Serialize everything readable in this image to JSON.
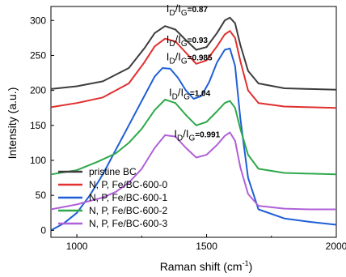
{
  "chart_data": {
    "type": "line",
    "xlabel": "Raman shift (cm",
    "xlabel_sup": "-1",
    "xlabel_tail": ")",
    "ylabel": "Intensity (a.u.)",
    "xlim": [
      900,
      2000
    ],
    "ylim": [
      -10,
      320
    ],
    "xticks": [
      1000,
      1500,
      2000
    ],
    "yticks": [
      0,
      50,
      100,
      150,
      200,
      250,
      300
    ],
    "legend_position": "lower-left",
    "series": [
      {
        "name": "pristine BC",
        "color": "#3d3d3d",
        "x": [
          900,
          1000,
          1100,
          1200,
          1260,
          1300,
          1340,
          1380,
          1420,
          1460,
          1500,
          1540,
          1570,
          1590,
          1610,
          1630,
          1660,
          1700,
          1800,
          1900,
          2000
        ],
        "y": [
          202,
          206,
          213,
          232,
          260,
          282,
          292,
          287,
          272,
          258,
          262,
          282,
          300,
          304,
          296,
          265,
          228,
          210,
          203,
          202,
          201
        ]
      },
      {
        "name": "N, P, Fe/BC-600-0",
        "color": "#e03030",
        "x": [
          900,
          1000,
          1100,
          1200,
          1260,
          1300,
          1340,
          1380,
          1420,
          1460,
          1500,
          1540,
          1570,
          1590,
          1610,
          1630,
          1660,
          1700,
          1800,
          1900,
          2000
        ],
        "y": [
          176,
          182,
          190,
          210,
          240,
          263,
          274,
          270,
          254,
          238,
          243,
          263,
          280,
          285,
          275,
          242,
          200,
          182,
          177,
          176,
          175
        ]
      },
      {
        "name": "N, P, Fe/BC-600-1",
        "color": "#1f5fd6",
        "x": [
          900,
          950,
          1000,
          1050,
          1100,
          1150,
          1200,
          1250,
          1300,
          1330,
          1360,
          1390,
          1420,
          1450,
          1480,
          1510,
          1540,
          1570,
          1590,
          1610,
          1630,
          1660,
          1700,
          1800,
          1900,
          2000
        ],
        "y": [
          0,
          10,
          25,
          50,
          80,
          115,
          150,
          185,
          220,
          232,
          231,
          218,
          200,
          188,
          192,
          212,
          240,
          258,
          260,
          235,
          160,
          75,
          30,
          17,
          12,
          8
        ]
      },
      {
        "name": "N, P, Fe/BC-600-2",
        "color": "#2ea84a",
        "x": [
          900,
          1000,
          1080,
          1150,
          1200,
          1250,
          1300,
          1340,
          1380,
          1420,
          1460,
          1500,
          1540,
          1570,
          1590,
          1610,
          1630,
          1660,
          1700,
          1800,
          1900,
          2000
        ],
        "y": [
          80,
          86,
          98,
          110,
          125,
          145,
          172,
          187,
          182,
          165,
          150,
          155,
          170,
          182,
          185,
          175,
          145,
          108,
          88,
          82,
          81,
          80
        ]
      },
      {
        "name": "N, P, Fe/BC-600-3",
        "color": "#b060d8",
        "x": [
          900,
          1000,
          1100,
          1150,
          1200,
          1250,
          1300,
          1340,
          1380,
          1420,
          1460,
          1500,
          1540,
          1570,
          1590,
          1610,
          1630,
          1660,
          1700,
          1800,
          1900,
          2000
        ],
        "y": [
          30,
          37,
          47,
          55,
          68,
          88,
          118,
          136,
          134,
          118,
          104,
          108,
          122,
          135,
          140,
          128,
          90,
          52,
          35,
          31,
          30,
          30
        ]
      }
    ],
    "annotations": [
      {
        "prefix": "I",
        "sub1": "D",
        "mid": "/I",
        "sub2": "G",
        "value": "=0.87",
        "x": 1345,
        "y": 312
      },
      {
        "prefix": "I",
        "sub1": "D",
        "mid": "/I",
        "sub2": "G",
        "value": "=0.93",
        "x": 1345,
        "y": 268
      },
      {
        "prefix": "I",
        "sub1": "D",
        "mid": "/I",
        "sub2": "G",
        "value": "=0.985",
        "x": 1345,
        "y": 243
      },
      {
        "prefix": "I",
        "sub1": "D",
        "mid": "/I",
        "sub2": "G",
        "value": "=1.04",
        "x": 1355,
        "y": 192
      },
      {
        "prefix": "I",
        "sub1": "D",
        "mid": "/I",
        "sub2": "G",
        "value": "=0.991",
        "x": 1375,
        "y": 133
      }
    ]
  }
}
